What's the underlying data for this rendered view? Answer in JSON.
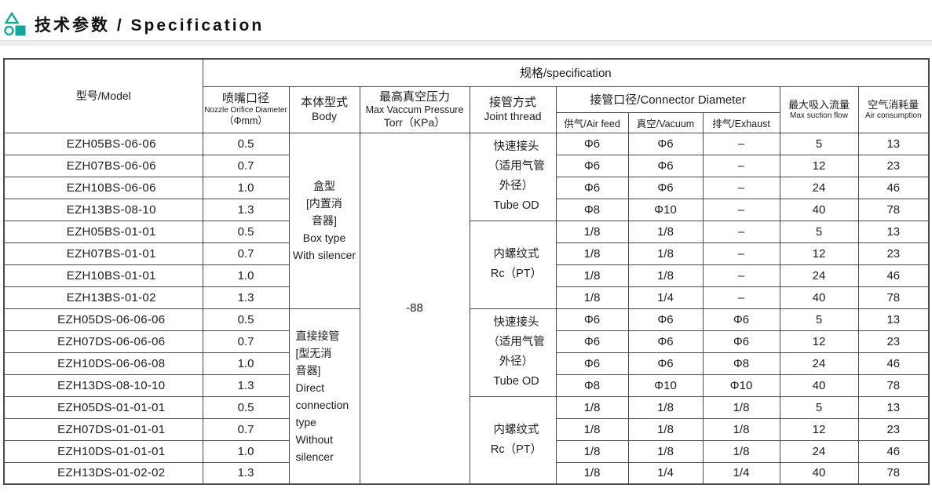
{
  "page": {
    "title": "技术参数 / Specification",
    "accent_color": "#14a79e"
  },
  "table": {
    "spec_header": "规格/specification",
    "columns": {
      "model": "型号/Model",
      "nozzle_zh": "喷嘴口径",
      "nozzle_en": "Nozzle Orifice Diameter",
      "nozzle_unit": "（Φmm）",
      "body_zh": "本体型式",
      "body_en": "Body",
      "pressure_zh": "最高真空压力",
      "pressure_en": "Max Vaccum Pressure",
      "pressure_unit": "Torr（KPa）",
      "joint_zh": "接管方式",
      "joint_en": "Joint thread",
      "connector": "接管口径/Connector Diameter",
      "air_feed": "供气/Air feed",
      "vacuum": "真空/Vacuum",
      "exhaust": "排气/Exhaust",
      "suction_zh": "最大吸入流量",
      "suction_en": "Max suction flow",
      "consumption_zh": "空气消耗量",
      "consumption_en": "Air consumption"
    },
    "pressure_value": "-88",
    "body_groups": [
      {
        "lines": [
          "盒型",
          "[内置消",
          "音器]",
          "Box type",
          "With silencer"
        ],
        "rows": 8
      },
      {
        "lines": [
          "直接接管",
          "[型无消",
          "音器]",
          "Direct",
          "connection",
          "type",
          "Without",
          "silencer"
        ],
        "rows": 8
      }
    ],
    "joint_groups": [
      {
        "lines": [
          "快速接头",
          "（适用气管",
          "外径）",
          "Tube OD"
        ],
        "rows": 4
      },
      {
        "lines": [
          "内螺纹式",
          "Rc（PT）"
        ],
        "rows": 4
      },
      {
        "lines": [
          "快速接头",
          "（适用气管",
          "外径）",
          "Tube OD"
        ],
        "rows": 4
      },
      {
        "lines": [
          "内螺纹式",
          "Rc（PT）"
        ],
        "rows": 4
      }
    ],
    "rows": [
      {
        "model": "EZH05BS-06-06",
        "nozzle": "0.5",
        "air_feed": "Φ6",
        "vacuum": "Φ6",
        "exhaust": "–",
        "suction": "5",
        "consumption": "13"
      },
      {
        "model": "EZH07BS-06-06",
        "nozzle": "0.7",
        "air_feed": "Φ6",
        "vacuum": "Φ6",
        "exhaust": "–",
        "suction": "12",
        "consumption": "23"
      },
      {
        "model": "EZH10BS-06-06",
        "nozzle": "1.0",
        "air_feed": "Φ6",
        "vacuum": "Φ6",
        "exhaust": "–",
        "suction": "24",
        "consumption": "46"
      },
      {
        "model": "EZH13BS-08-10",
        "nozzle": "1.3",
        "air_feed": "Φ8",
        "vacuum": "Φ10",
        "exhaust": "–",
        "suction": "40",
        "consumption": "78"
      },
      {
        "model": "EZH05BS-01-01",
        "nozzle": "0.5",
        "air_feed": "1/8",
        "vacuum": "1/8",
        "exhaust": "–",
        "suction": "5",
        "consumption": "13"
      },
      {
        "model": "EZH07BS-01-01",
        "nozzle": "0.7",
        "air_feed": "1/8",
        "vacuum": "1/8",
        "exhaust": "–",
        "suction": "12",
        "consumption": "23"
      },
      {
        "model": "EZH10BS-01-01",
        "nozzle": "1.0",
        "air_feed": "1/8",
        "vacuum": "1/8",
        "exhaust": "–",
        "suction": "24",
        "consumption": "46"
      },
      {
        "model": "EZH13BS-01-02",
        "nozzle": "1.3",
        "air_feed": "1/8",
        "vacuum": "1/4",
        "exhaust": "–",
        "suction": "40",
        "consumption": "78"
      },
      {
        "model": "EZH05DS-06-06-06",
        "nozzle": "0.5",
        "air_feed": "Φ6",
        "vacuum": "Φ6",
        "exhaust": "Φ6",
        "suction": "5",
        "consumption": "13"
      },
      {
        "model": "EZH07DS-06-06-06",
        "nozzle": "0.7",
        "air_feed": "Φ6",
        "vacuum": "Φ6",
        "exhaust": "Φ6",
        "suction": "12",
        "consumption": "23"
      },
      {
        "model": "EZH10DS-06-06-08",
        "nozzle": "1.0",
        "air_feed": "Φ6",
        "vacuum": "Φ6",
        "exhaust": "Φ8",
        "suction": "24",
        "consumption": "46"
      },
      {
        "model": "EZH13DS-08-10-10",
        "nozzle": "1.3",
        "air_feed": "Φ8",
        "vacuum": "Φ10",
        "exhaust": "Φ10",
        "suction": "40",
        "consumption": "78"
      },
      {
        "model": "EZH05DS-01-01-01",
        "nozzle": "0.5",
        "air_feed": "1/8",
        "vacuum": "1/8",
        "exhaust": "1/8",
        "suction": "5",
        "consumption": "13"
      },
      {
        "model": "EZH07DS-01-01-01",
        "nozzle": "0.7",
        "air_feed": "1/8",
        "vacuum": "1/8",
        "exhaust": "1/8",
        "suction": "12",
        "consumption": "23"
      },
      {
        "model": "EZH10DS-01-01-01",
        "nozzle": "1.0",
        "air_feed": "1/8",
        "vacuum": "1/8",
        "exhaust": "1/8",
        "suction": "24",
        "consumption": "46"
      },
      {
        "model": "EZH13DS-01-02-02",
        "nozzle": "1.3",
        "air_feed": "1/8",
        "vacuum": "1/4",
        "exhaust": "1/4",
        "suction": "40",
        "consumption": "78"
      }
    ]
  }
}
